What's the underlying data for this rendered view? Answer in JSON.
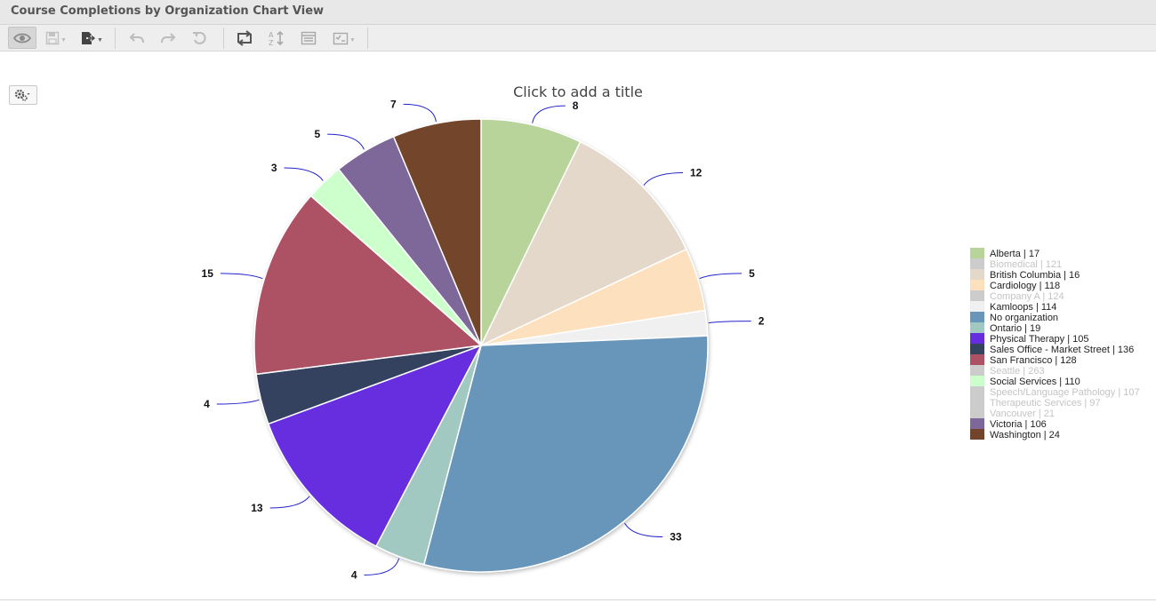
{
  "window": {
    "title": "Course Completions by Organization Chart View"
  },
  "toolbar": {
    "buttons": [
      {
        "name": "view-icon",
        "enabled": true,
        "active": true
      },
      {
        "name": "save-icon",
        "enabled": false,
        "dropdown": true
      },
      {
        "name": "export-icon",
        "enabled": true,
        "dropdown": true
      },
      {
        "name": "undo-icon",
        "enabled": false
      },
      {
        "name": "redo-icon",
        "enabled": false
      },
      {
        "name": "reset-icon",
        "enabled": false
      },
      {
        "name": "swap-axes-icon",
        "enabled": true
      },
      {
        "name": "sort-icon",
        "enabled": false
      },
      {
        "name": "table-view-icon",
        "enabled": false
      },
      {
        "name": "checklist-icon",
        "enabled": false,
        "dropdown": true
      }
    ]
  },
  "chart_settings": {
    "icon": "gear-icon"
  },
  "colors": {
    "label_connector": "#2222cc",
    "disabled_text": "#c4c4c4"
  },
  "chart_data": {
    "type": "pie",
    "title": "Click to add a title",
    "legend_position": "right",
    "slices": [
      {
        "name": "Alberta",
        "value": 8,
        "color": "#b8d49a"
      },
      {
        "name": "British Columbia",
        "value": 12,
        "color": "#e4d8cb"
      },
      {
        "name": "Cardiology",
        "value": 5,
        "color": "#fde0bd"
      },
      {
        "name": "Kamloops",
        "value": 2,
        "color": "#f0f0f0"
      },
      {
        "name": "No organization",
        "value": 33,
        "color": "#6896bb"
      },
      {
        "name": "Ontario",
        "value": 4,
        "color": "#a2c8c2"
      },
      {
        "name": "Physical Therapy",
        "value": 13,
        "color": "#662ddf"
      },
      {
        "name": "Sales Office - Market Street",
        "value": 4,
        "color": "#34435e"
      },
      {
        "name": "San Francisco",
        "value": 15,
        "color": "#ad5165"
      },
      {
        "name": "Social Services",
        "value": 3,
        "color": "#ccffcc"
      },
      {
        "name": "Victoria",
        "value": 5,
        "color": "#7d6899"
      },
      {
        "name": "Washington",
        "value": 7,
        "color": "#73442b"
      }
    ],
    "legend": [
      {
        "label": "Alberta | 17",
        "color": "#b8d49a",
        "disabled": false
      },
      {
        "label": "Biomedical | 121",
        "color": "#cccccc",
        "disabled": true
      },
      {
        "label": "British Columbia | 16",
        "color": "#e4d8cb",
        "disabled": false
      },
      {
        "label": "Cardiology | 118",
        "color": "#fde0bd",
        "disabled": false
      },
      {
        "label": "Company A | 124",
        "color": "#cccccc",
        "disabled": true
      },
      {
        "label": "Kamloops | 114",
        "color": "#f0f0f0",
        "disabled": false
      },
      {
        "label": "No organization",
        "color": "#6896bb",
        "disabled": false
      },
      {
        "label": "Ontario | 19",
        "color": "#a2c8c2",
        "disabled": false
      },
      {
        "label": "Physical Therapy | 105",
        "color": "#662ddf",
        "disabled": false
      },
      {
        "label": "Sales Office - Market Street | 136",
        "color": "#34435e",
        "disabled": false
      },
      {
        "label": "San Francisco | 128",
        "color": "#ad5165",
        "disabled": false
      },
      {
        "label": "Seattle | 263",
        "color": "#cccccc",
        "disabled": true
      },
      {
        "label": "Social Services | 110",
        "color": "#ccffcc",
        "disabled": false
      },
      {
        "label": "Speech/Language Pathology | 107",
        "color": "#cccccc",
        "disabled": true
      },
      {
        "label": "Therapeutic Services | 97",
        "color": "#cccccc",
        "disabled": true
      },
      {
        "label": "Vancouver | 21",
        "color": "#cccccc",
        "disabled": true
      },
      {
        "label": "Victoria | 106",
        "color": "#7d6899",
        "disabled": false
      },
      {
        "label": "Washington | 24",
        "color": "#73442b",
        "disabled": false
      }
    ]
  }
}
